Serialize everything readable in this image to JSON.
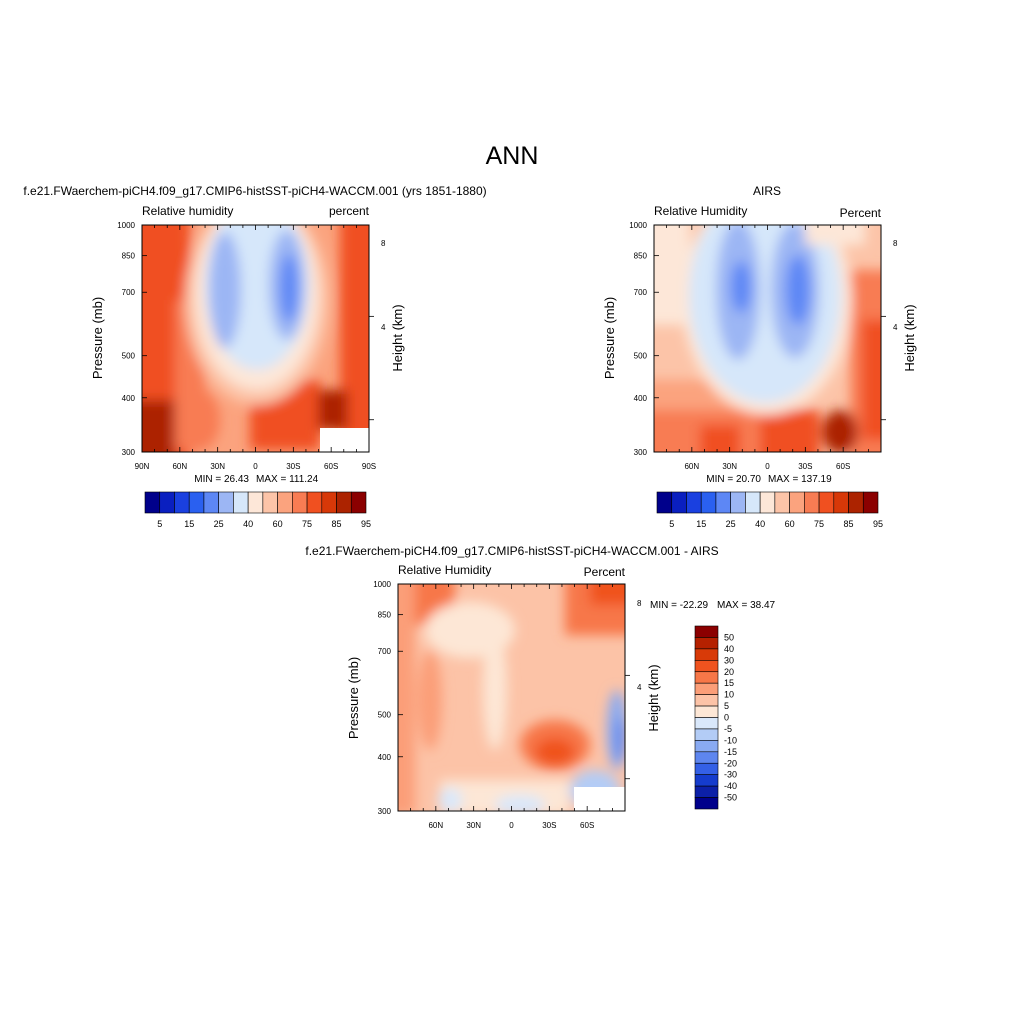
{
  "main_title": "ANN",
  "chart_data": [
    {
      "type": "heatmap",
      "title": "f.e21.FWaerchem-piCH4.f09_g17.CMIP6-histSST-piCH4-WACCM.001 (yrs 1851-1880)",
      "left_label": "Relative humidity",
      "right_label": "percent",
      "ylabel": "Pressure (mb)",
      "ylabel_right": "Height (km)",
      "x_ticks": [
        "90N",
        "60N",
        "30N",
        "0",
        "30S",
        "60S",
        "90S"
      ],
      "x_range": [
        90,
        -90
      ],
      "y_ticks": [
        "300",
        "400",
        "500",
        "700",
        "850",
        "1000"
      ],
      "y_range": [
        1000,
        300
      ],
      "y_scale": "log-pressure",
      "height_ticks": [
        "8",
        "4"
      ],
      "min_label": "MIN = 26.43",
      "max_label": "MAX = 111.24",
      "colorbar_orientation": "horizontal",
      "colorbar_labels": [
        "5",
        "15",
        "25",
        "40",
        "60",
        "75",
        "85",
        "95"
      ],
      "colorbar_colors": [
        "#00008b",
        "#0a1fc0",
        "#1a40e0",
        "#2a60f0",
        "#5d87f5",
        "#9cb6f4",
        "#d6e7fa",
        "#fde7d8",
        "#fcc4a8",
        "#fba37e",
        "#f87c53",
        "#f05020",
        "#d73808",
        "#ac2300",
        "#8b0000"
      ]
    },
    {
      "type": "heatmap",
      "title": "AIRS",
      "left_label": "Relative Humidity",
      "right_label": "Percent",
      "ylabel": "Pressure (mb)",
      "ylabel_right": "Height (km)",
      "x_ticks": [
        "60N",
        "30N",
        "0",
        "30S",
        "60S"
      ],
      "x_range": [
        90,
        -90
      ],
      "y_ticks": [
        "300",
        "400",
        "500",
        "700",
        "850",
        "1000"
      ],
      "y_range": [
        1000,
        300
      ],
      "y_scale": "log-pressure",
      "height_ticks": [
        "8",
        "4"
      ],
      "min_label": "MIN = 20.70",
      "max_label": "MAX = 137.19",
      "colorbar_orientation": "horizontal",
      "colorbar_labels": [
        "5",
        "15",
        "25",
        "40",
        "60",
        "75",
        "85",
        "95"
      ],
      "colorbar_colors": [
        "#00008b",
        "#0a1fc0",
        "#1a40e0",
        "#2a60f0",
        "#5d87f5",
        "#9cb6f4",
        "#d6e7fa",
        "#fde7d8",
        "#fcc4a8",
        "#fba37e",
        "#f87c53",
        "#f05020",
        "#d73808",
        "#ac2300",
        "#8b0000"
      ]
    },
    {
      "type": "heatmap",
      "title": "f.e21.FWaerchem-piCH4.f09_g17.CMIP6-histSST-piCH4-WACCM.001 - AIRS",
      "left_label": "Relative Humidity",
      "right_label": "Percent",
      "ylabel": "Pressure (mb)",
      "ylabel_right": "Height (km)",
      "x_ticks": [
        "60N",
        "30N",
        "0",
        "30S",
        "60S"
      ],
      "x_range": [
        90,
        -90
      ],
      "y_ticks": [
        "300",
        "400",
        "500",
        "700",
        "850",
        "1000"
      ],
      "y_range": [
        1000,
        300
      ],
      "y_scale": "log-pressure",
      "height_ticks": [
        "8",
        "4"
      ],
      "min_label": "MIN = -22.29",
      "max_label": "MAX = 38.47",
      "colorbar_orientation": "vertical",
      "colorbar_labels": [
        "50",
        "40",
        "30",
        "20",
        "15",
        "10",
        "5",
        "0",
        "-5",
        "-10",
        "-15",
        "-20",
        "-30",
        "-40",
        "-50"
      ],
      "colorbar_colors": [
        "#8b0000",
        "#b52100",
        "#d83a08",
        "#f0531f",
        "#f77748",
        "#fb9e78",
        "#fcc3a7",
        "#fde7d6",
        "#d9e8fb",
        "#b3ccf6",
        "#89aaf2",
        "#5e86ef",
        "#3460e6",
        "#153ccd",
        "#0c20a8",
        "#00008b"
      ]
    }
  ]
}
